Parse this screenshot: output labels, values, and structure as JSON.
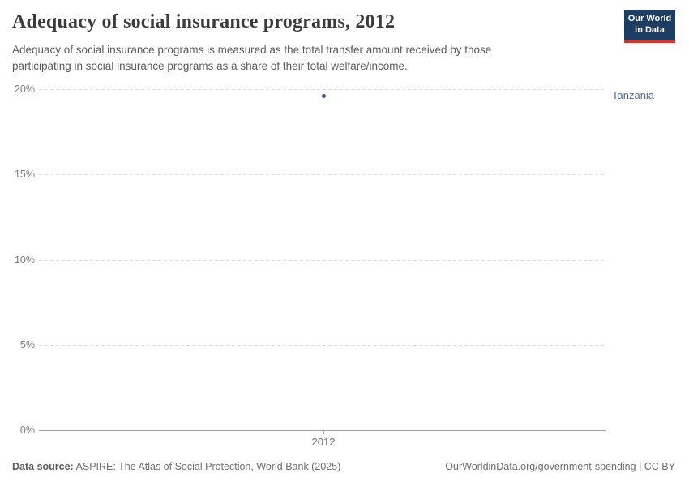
{
  "header": {
    "title": "Adequacy of social insurance programs, 2012",
    "subtitle": "Adequacy of social insurance programs is measured as the total transfer amount received by those participating in social insurance programs as a share of their total welfare/income.",
    "logo": {
      "line1": "Our World",
      "line2": "in Data"
    }
  },
  "chart_data": {
    "type": "scatter",
    "title": "Adequacy of social insurance programs, 2012",
    "xlabel": "",
    "ylabel": "",
    "x": [
      2012
    ],
    "series": [
      {
        "name": "Tanzania",
        "values": [
          19.6
        ],
        "color": "#4c6a9f",
        "point_color": "#3e5c8e"
      }
    ],
    "ylim": [
      0,
      20
    ],
    "y_ticks": [
      "20%",
      "15%",
      "10%",
      "5%",
      "0%"
    ],
    "x_ticks": [
      "2012"
    ],
    "grid": "horizontal-dashed",
    "legend_position": "label-right-of-plot"
  },
  "colors": {
    "logo_bg": "#1d3d63",
    "logo_accent": "#d8352a",
    "grid": "#dedede",
    "axis": "#a3a3a3"
  },
  "footer": {
    "source_label": "Data source:",
    "source_text": "ASPIRE: The Atlas of Social Protection, World Bank (2025)",
    "attribution": "OurWorldinData.org/government-spending | CC BY"
  }
}
